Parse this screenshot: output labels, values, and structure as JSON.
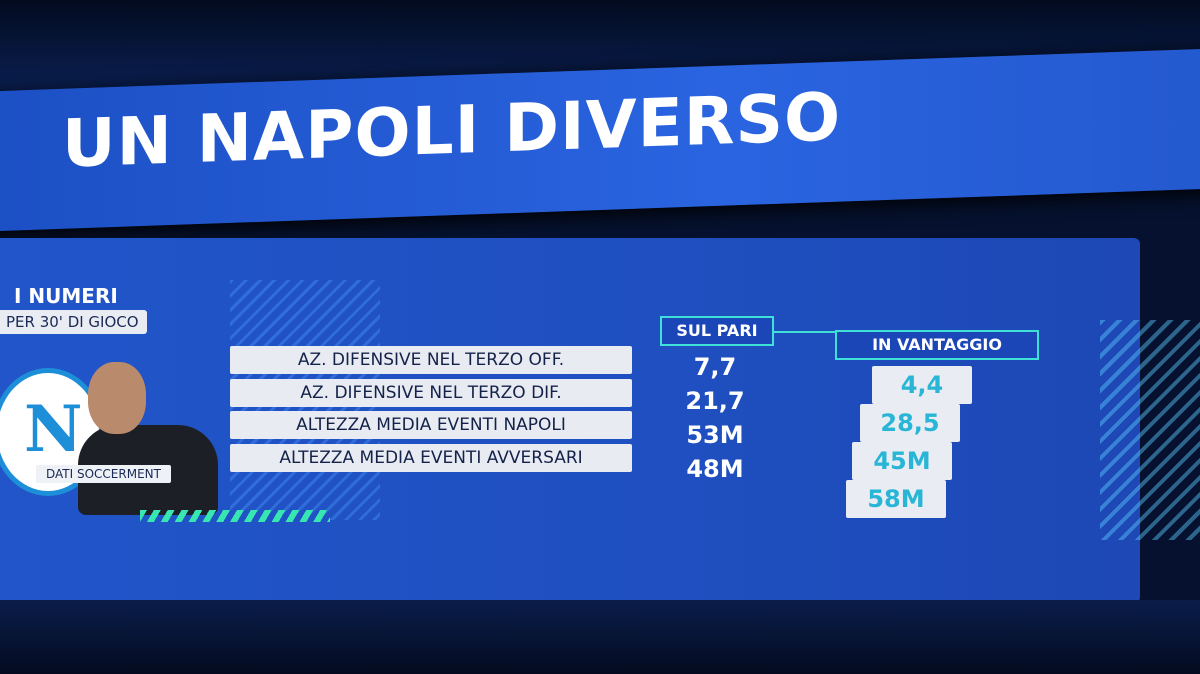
{
  "header": {
    "title": "UN NAPOLI DIVERSO"
  },
  "panel": {
    "heading": "I NUMERI",
    "subheading": "PER 30' DI GIOCO",
    "logo_letter": "N",
    "source": "DATI SOCCERMENT"
  },
  "table": {
    "columns": [
      "SUL PARI",
      "IN VANTAGGIO"
    ],
    "rows": [
      [
        "AZ. DIFENSIVE NEL TERZO OFF.",
        "7,7",
        "4,4"
      ],
      [
        "AZ. DIFENSIVE NEL TERZO DIF.",
        "21,7",
        "28,5"
      ],
      [
        "ALTEZZA MEDIA EVENTI NAPOLI",
        "53M",
        "45M"
      ],
      [
        "ALTEZZA MEDIA EVENTI AVVERSARI",
        "48M",
        "58M"
      ]
    ]
  }
}
